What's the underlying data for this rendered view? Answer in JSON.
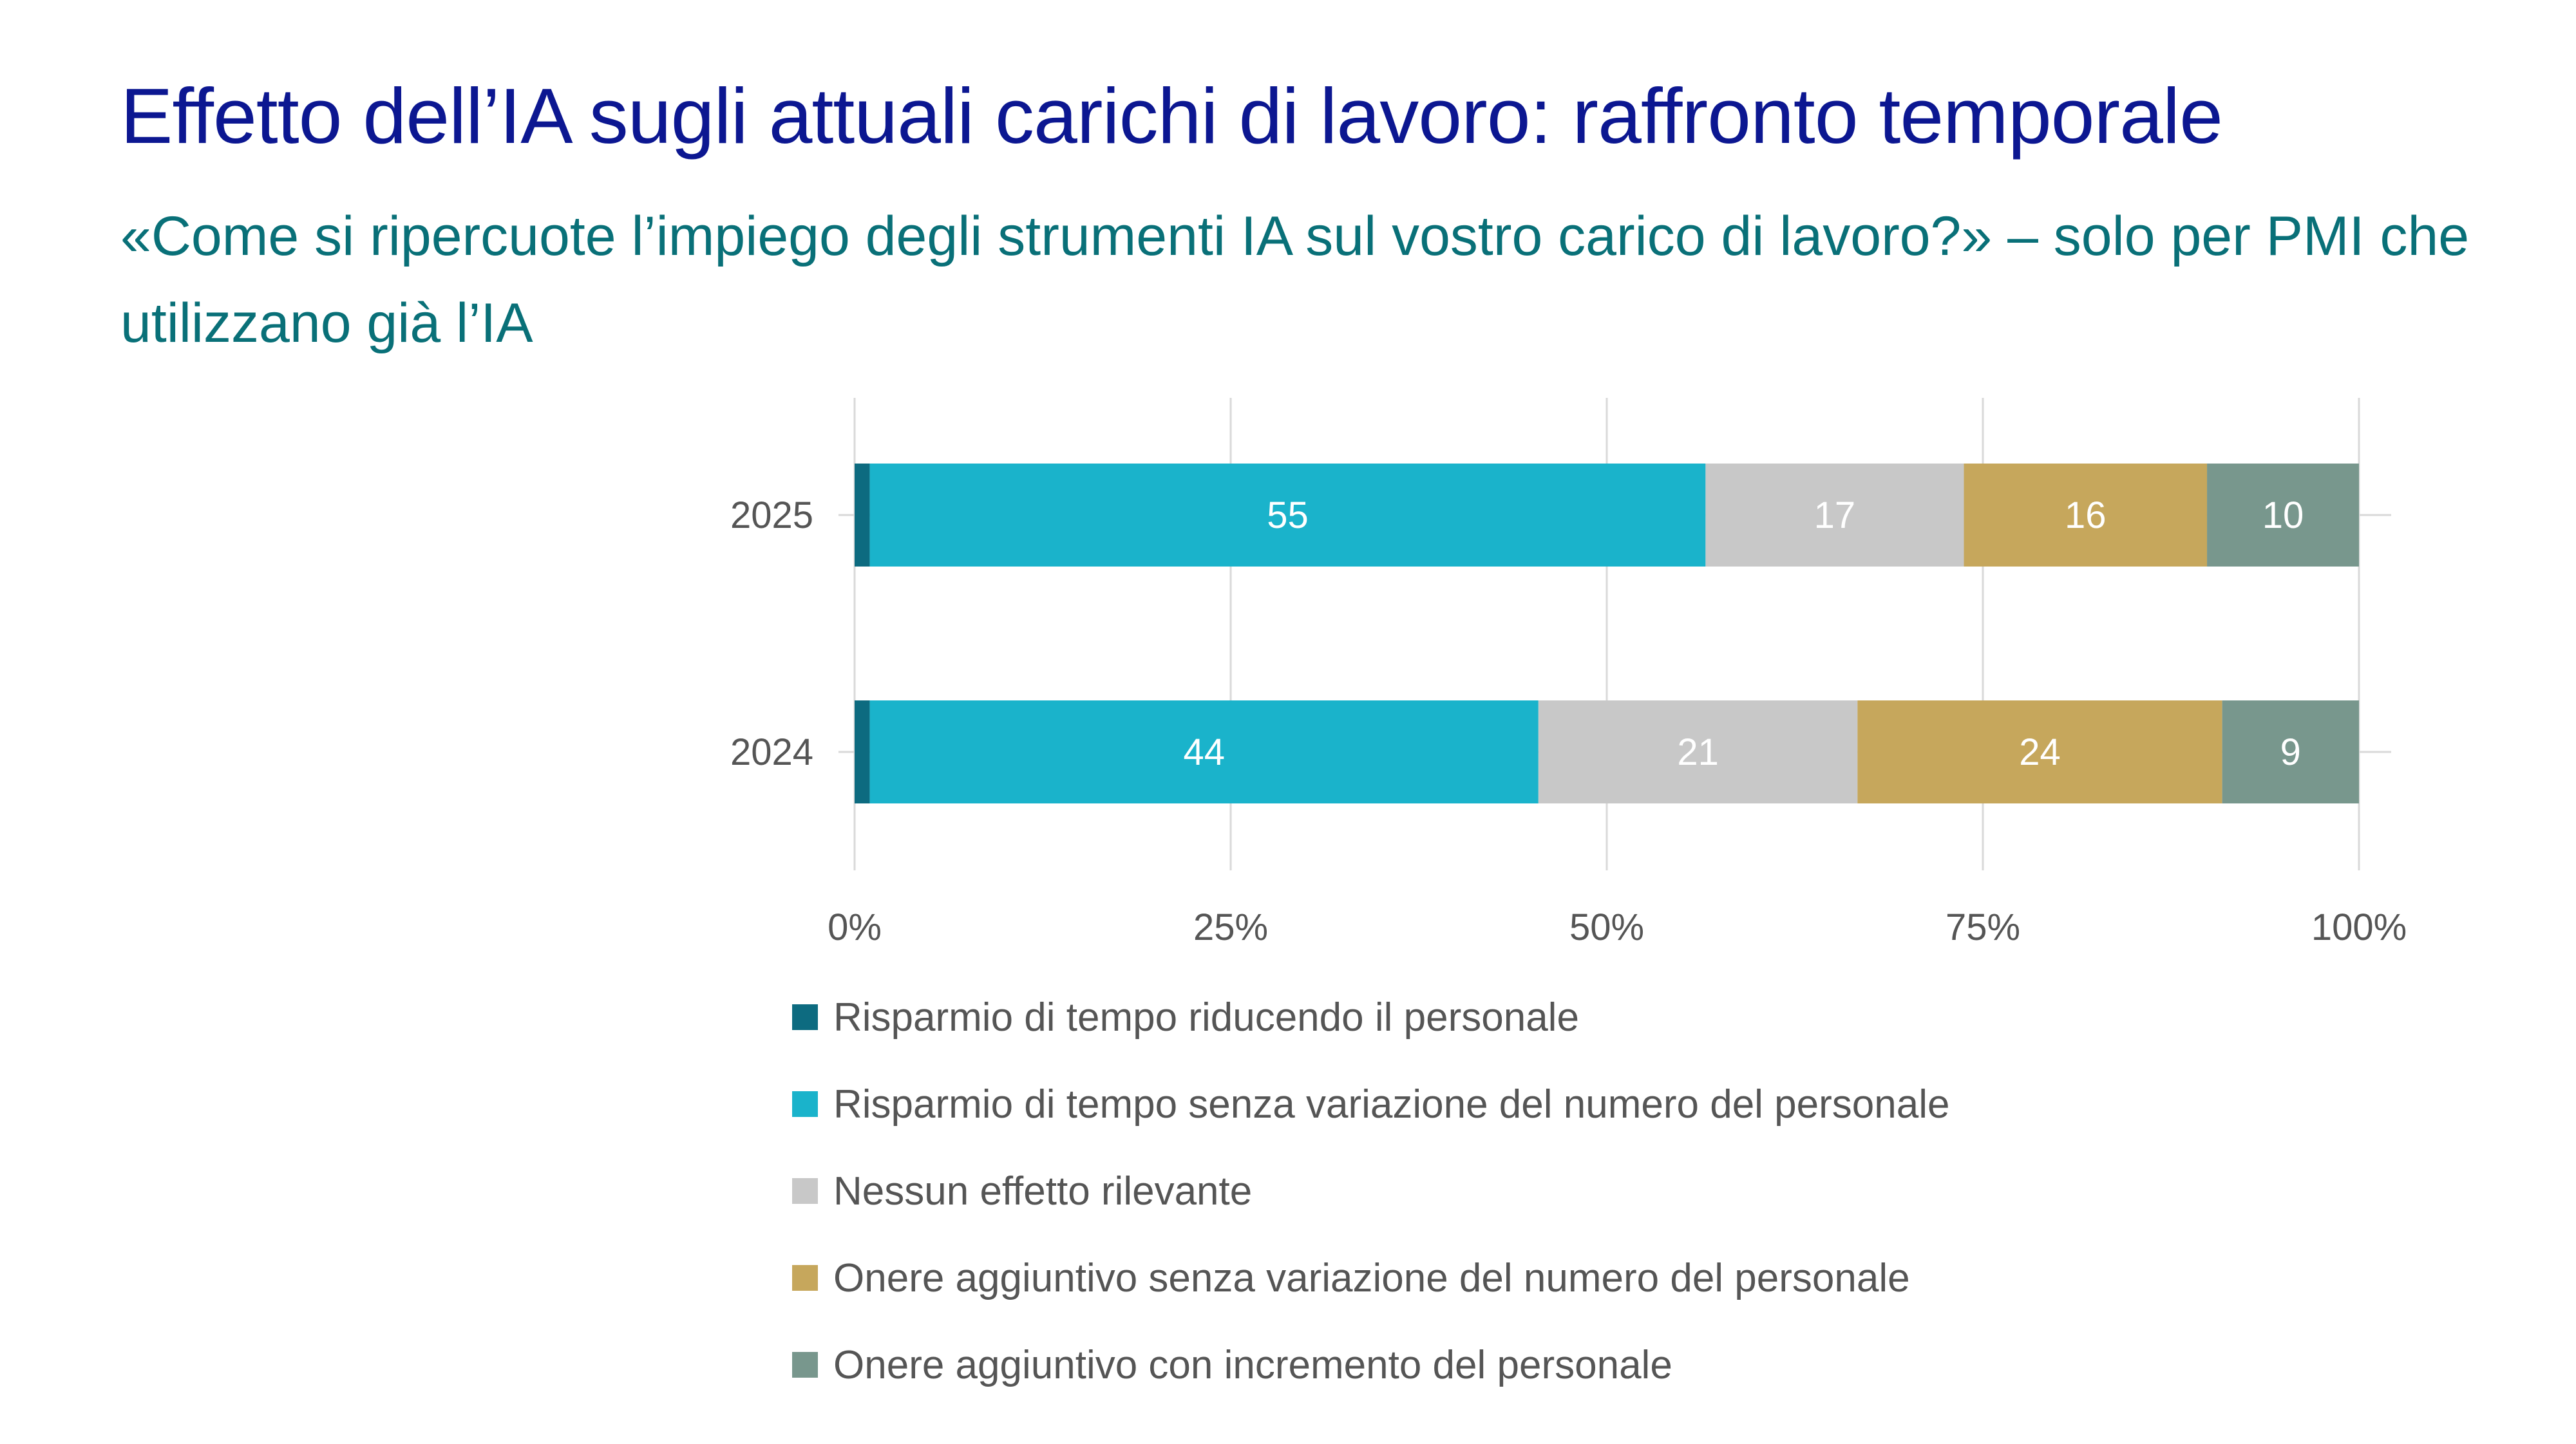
{
  "title": "Effetto dell’IA sugli attuali carichi di lavoro: raffronto temporale",
  "subtitle": "«Come si ripercuote l’impiego degli strumenti IA sul vostro carico di lavoro?» – solo per PMI che utilizzano già l’IA",
  "chart_data": {
    "type": "bar",
    "orientation": "horizontal",
    "stacked": true,
    "categories": [
      "2025",
      "2024"
    ],
    "series": [
      {
        "name": "Risparmio di tempo riducendo il personale",
        "values": [
          1,
          1
        ],
        "labels": [
          "",
          ""
        ],
        "color": "#0d6b80"
      },
      {
        "name": "Risparmio di tempo senza variazione del numero del personale",
        "values": [
          55,
          44
        ],
        "labels": [
          "55",
          "44"
        ],
        "color": "#1ab3cb"
      },
      {
        "name": "Nessun effetto rilevante",
        "values": [
          17,
          21
        ],
        "labels": [
          "17",
          "21"
        ],
        "color": "#c8c8c8"
      },
      {
        "name": "Onere aggiuntivo senza variazione del numero del personale",
        "values": [
          16,
          24
        ],
        "labels": [
          "16",
          "24"
        ],
        "color": "#c6a75c"
      },
      {
        "name": "Onere aggiuntivo con incremento del personale",
        "values": [
          10,
          9
        ],
        "labels": [
          "10",
          "9"
        ],
        "color": "#78978d"
      }
    ],
    "x_ticks": [
      0,
      25,
      50,
      75,
      100
    ],
    "x_tick_labels": [
      "0%",
      "25%",
      "50%",
      "75%",
      "100%"
    ],
    "xlim": [
      0,
      100
    ],
    "grid": true,
    "legend_position": "bottom",
    "xlabel": "",
    "ylabel": ""
  }
}
